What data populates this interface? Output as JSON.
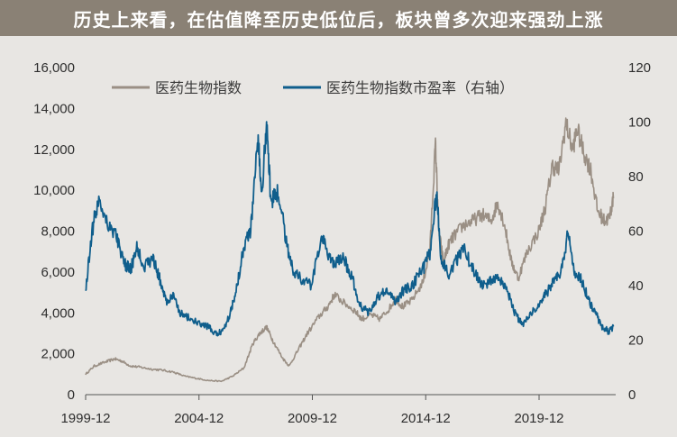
{
  "title": "历史上来看，在估值降至历史低位后，板块曾多次迎来强劲上涨",
  "chart_data": {
    "type": "line",
    "title": "历史上来看，在估值降至历史低位后，板块曾多次迎来强劲上涨",
    "x_tick_labels": [
      "1999-12",
      "2004-12",
      "2009-12",
      "2014-12",
      "2019-12"
    ],
    "x_tick_years": [
      1999.92,
      2004.92,
      2009.92,
      2014.92,
      2019.92
    ],
    "xlim": [
      1999.92,
      2023.3
    ],
    "y_left": {
      "ylim": [
        0,
        16000
      ],
      "ticks": [
        0,
        2000,
        4000,
        6000,
        8000,
        10000,
        12000,
        14000,
        16000
      ],
      "tick_labels": [
        "0",
        "2,000",
        "4,000",
        "6,000",
        "8,000",
        "10,000",
        "12,000",
        "14,000",
        "16,000"
      ]
    },
    "y_right": {
      "ylim": [
        0,
        120
      ],
      "ticks": [
        0,
        20,
        40,
        60,
        80,
        100,
        120
      ],
      "tick_labels": [
        "0",
        "20",
        "40",
        "60",
        "80",
        "100",
        "120"
      ]
    },
    "series": [
      {
        "name": "医药生物指数",
        "axis": "left",
        "color": "#9a8f84",
        "x": [
          1999.92,
          2000.3,
          2000.8,
          2001.2,
          2001.5,
          2001.9,
          2002.3,
          2002.8,
          2003.3,
          2003.8,
          2004.3,
          2004.8,
          2005.3,
          2005.9,
          2006.4,
          2006.9,
          2007.3,
          2007.6,
          2007.9,
          2008.2,
          2008.6,
          2008.9,
          2009.3,
          2009.7,
          2010.2,
          2010.6,
          2010.9,
          2011.3,
          2011.8,
          2012.1,
          2012.5,
          2012.9,
          2013.3,
          2013.6,
          2013.9,
          2014.3,
          2014.8,
          2015.1,
          2015.35,
          2015.5,
          2015.7,
          2015.95,
          2016.2,
          2016.6,
          2017.0,
          2017.4,
          2017.8,
          2018.1,
          2018.4,
          2018.7,
          2019.0,
          2019.4,
          2019.9,
          2020.2,
          2020.5,
          2020.8,
          2021.1,
          2021.4,
          2021.6,
          2021.9,
          2022.2,
          2022.5,
          2022.8,
          2023.0,
          2023.2
        ],
        "values": [
          1000,
          1400,
          1600,
          1750,
          1650,
          1400,
          1350,
          1250,
          1200,
          1100,
          900,
          800,
          700,
          650,
          900,
          1300,
          2500,
          3000,
          3300,
          2600,
          1800,
          1400,
          2200,
          3000,
          3800,
          4300,
          4900,
          4500,
          4100,
          3700,
          3900,
          3700,
          4200,
          4700,
          4300,
          4600,
          5500,
          7000,
          12300,
          8000,
          6500,
          7400,
          7800,
          8300,
          8500,
          8800,
          8500,
          9400,
          8300,
          6500,
          5700,
          7000,
          8000,
          9200,
          11200,
          11000,
          13300,
          12000,
          13000,
          11800,
          11000,
          9000,
          8500,
          8600,
          9600
        ]
      },
      {
        "name": "医药生物指数市盈率（右轴）",
        "axis": "right",
        "color": "#0f5e8c",
        "x": [
          1999.92,
          2000.2,
          2000.5,
          2000.9,
          2001.3,
          2001.6,
          2001.9,
          2002.2,
          2002.5,
          2002.9,
          2003.2,
          2003.5,
          2003.8,
          2004.1,
          2004.5,
          2004.9,
          2005.3,
          2005.7,
          2006.0,
          2006.3,
          2006.6,
          2006.9,
          2007.2,
          2007.5,
          2007.7,
          2007.9,
          2008.1,
          2008.4,
          2008.8,
          2009.1,
          2009.5,
          2009.9,
          2010.3,
          2010.6,
          2010.9,
          2011.3,
          2011.7,
          2012.0,
          2012.4,
          2012.8,
          2013.2,
          2013.6,
          2013.9,
          2014.3,
          2014.8,
          2015.1,
          2015.4,
          2015.6,
          2015.9,
          2016.2,
          2016.6,
          2017.0,
          2017.4,
          2017.8,
          2018.2,
          2018.6,
          2018.9,
          2019.2,
          2019.6,
          2020.0,
          2020.3,
          2020.6,
          2020.9,
          2021.2,
          2021.5,
          2021.8,
          2022.1,
          2022.4,
          2022.7,
          2023.0,
          2023.2
        ],
        "values": [
          38,
          60,
          72,
          63,
          58,
          48,
          46,
          54,
          47,
          50,
          42,
          34,
          36,
          30,
          28,
          26,
          25,
          22,
          24,
          30,
          40,
          55,
          60,
          95,
          75,
          100,
          70,
          75,
          55,
          45,
          42,
          40,
          58,
          52,
          48,
          50,
          42,
          33,
          30,
          36,
          38,
          34,
          38,
          40,
          46,
          52,
          74,
          50,
          44,
          48,
          54,
          46,
          40,
          42,
          42,
          36,
          29,
          26,
          30,
          34,
          38,
          42,
          45,
          60,
          44,
          42,
          35,
          30,
          25,
          23,
          25
        ]
      }
    ],
    "legend": [
      "医药生物指数",
      "医药生物指数市盈率（右轴）"
    ],
    "legend_position": "top-center"
  }
}
